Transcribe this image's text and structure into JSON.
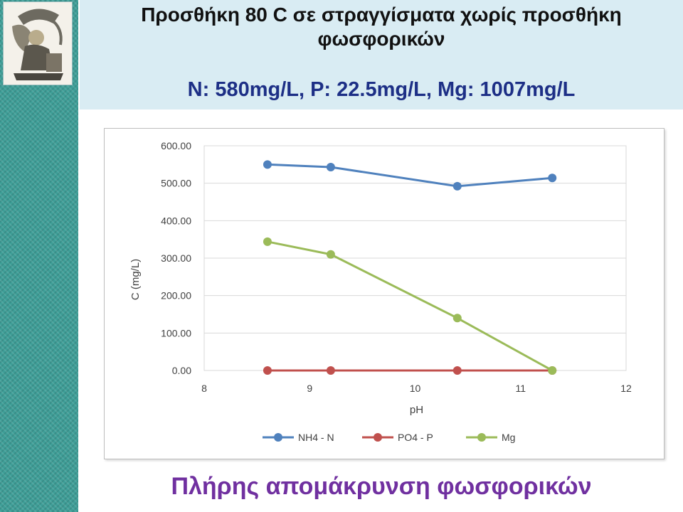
{
  "header": {
    "title_line1": "Προσθήκη 80 C σε στραγγίσματα χωρίς προσθήκη",
    "title_line2": "φωσφορικών",
    "subtitle": "N: 580mg/L, P: 22.5mg/L, Mg: 1007mg/L"
  },
  "footer": {
    "text": "Πλήρης απομάκρυνση φωσφορικών"
  },
  "colors": {
    "left_band": "#3e9e97",
    "header_panel": "#d9ecf3",
    "subtitle": "#1d2f86",
    "footer": "#7030a0"
  },
  "chart_data": {
    "type": "line",
    "title": "",
    "xlabel": "pH",
    "ylabel": "C (mg/L)",
    "xlim": [
      8,
      12
    ],
    "ylim": [
      0,
      600
    ],
    "xticks": [
      "8",
      "9",
      "10",
      "11",
      "12"
    ],
    "yticks": [
      "0.00",
      "100.00",
      "200.00",
      "300.00",
      "400.00",
      "500.00",
      "600.00"
    ],
    "grid": "horizontal",
    "legend_position": "bottom",
    "series": [
      {
        "name": "NH4 - N",
        "color": "#4f81bd",
        "x": [
          8.6,
          9.2,
          10.4,
          11.3
        ],
        "y": [
          550,
          543,
          492,
          514
        ]
      },
      {
        "name": "PO4 - P",
        "color": "#c0504d",
        "x": [
          8.6,
          9.2,
          10.4,
          11.3
        ],
        "y": [
          0,
          0,
          0,
          0
        ]
      },
      {
        "name": "Mg",
        "color": "#9bbb59",
        "x": [
          8.6,
          9.2,
          10.4,
          11.3
        ],
        "y": [
          344,
          310,
          140,
          0
        ]
      }
    ]
  }
}
